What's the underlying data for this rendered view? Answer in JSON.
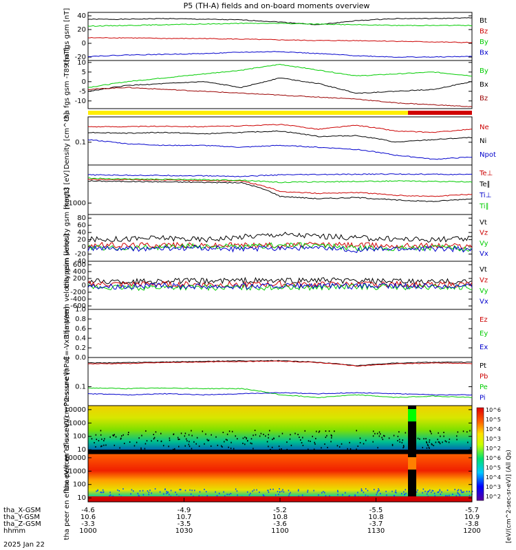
{
  "title": "P5 (TH-A) fields and on-board moments overview",
  "time_axis": {
    "rows": [
      {
        "label": "tha_X-GSM",
        "values": [
          "-4.6",
          "-4.9",
          "-5.2",
          "-5.5",
          "-5.7"
        ]
      },
      {
        "label": "tha_Y-GSM",
        "values": [
          "10.6",
          "10.7",
          "10.8",
          "10.8",
          "10.9"
        ]
      },
      {
        "label": "tha_Z-GSM",
        "values": [
          "-3.3",
          "-3.5",
          "-3.6",
          "-3.7",
          "-3.8"
        ]
      },
      {
        "label": "hhmm",
        "values": [
          "1000",
          "1030",
          "1100",
          "1130",
          "1200"
        ]
      }
    ],
    "date": "2025 Jan 22"
  },
  "colorbar": {
    "label": "[eV/(cm^2-sec-sr-eV)] (All Qs)",
    "ticks": [
      "10^2",
      "10^3",
      "10^4",
      "10^5",
      "10^6",
      "10^2",
      "10^3",
      "10^4",
      "10^5",
      "10^6"
    ]
  },
  "chart_data": [
    {
      "type": "line",
      "ylabel": "tha fgs gsm [nT]",
      "yticks": [
        "40",
        "20",
        "0",
        "-20"
      ],
      "ylim": [
        -25,
        45
      ],
      "series": [
        {
          "name": "Bt",
          "color": "#000000",
          "values": [
            35,
            35,
            36,
            35,
            34,
            31,
            27,
            33,
            36,
            36,
            37
          ]
        },
        {
          "name": "Bz",
          "color": "#cc0000",
          "values": [
            8,
            8,
            7,
            7,
            6,
            5,
            4,
            4,
            3,
            2,
            1
          ]
        },
        {
          "name": "By",
          "color": "#00cc00",
          "values": [
            25,
            26,
            27,
            28,
            29,
            29,
            28,
            27,
            26,
            26,
            26
          ]
        },
        {
          "name": "Bx",
          "color": "#0000cc",
          "values": [
            -19,
            -17,
            -16,
            -15,
            -13,
            -12,
            -15,
            -18,
            -20,
            -20,
            -19
          ]
        }
      ]
    },
    {
      "type": "line",
      "ylabel": "tha fgs gsm -T89 [nT]",
      "yticks": [
        "10",
        "5",
        "0",
        "-5",
        "-10"
      ],
      "ylim": [
        -14,
        11
      ],
      "series": [
        {
          "name": "By",
          "color": "#00cc00",
          "values": [
            -3,
            0,
            2,
            4,
            6,
            9,
            6,
            3,
            4,
            5,
            3
          ]
        },
        {
          "name": "Bx",
          "color": "#000000",
          "values": [
            -5,
            -2,
            -1,
            0,
            -3,
            2,
            -1,
            -6,
            -5,
            -4,
            0
          ]
        },
        {
          "name": "Bz",
          "color": "#990000",
          "values": [
            -4,
            -3,
            -4,
            -5,
            -6,
            -7,
            -8,
            -9,
            -11,
            -12,
            -13
          ]
        }
      ]
    },
    {
      "type": "line",
      "ylabel": "Density [cm^-3]",
      "yticks": [
        "0.1"
      ],
      "log": true,
      "ylim": [
        0.02,
        0.6
      ],
      "series": [
        {
          "name": "Ne",
          "color": "#cc0000",
          "values": [
            0.3,
            0.3,
            0.31,
            0.3,
            0.32,
            0.35,
            0.25,
            0.33,
            0.22,
            0.2,
            0.25
          ]
        },
        {
          "name": "Ni",
          "color": "#000000",
          "values": [
            0.2,
            0.19,
            0.2,
            0.18,
            0.2,
            0.22,
            0.15,
            0.16,
            0.1,
            0.12,
            0.14
          ]
        },
        {
          "name": "Npot",
          "color": "#0000cc",
          "values": [
            0.12,
            0.09,
            0.08,
            0.08,
            0.07,
            0.08,
            0.07,
            0.06,
            0.04,
            0.03,
            0.035
          ]
        }
      ]
    },
    {
      "type": "line",
      "ylabel": "magt3 [eV]",
      "yticks": [
        "1000"
      ],
      "log": true,
      "ylim": [
        500,
        10000
      ],
      "series": [
        {
          "name": "Te⊥",
          "color": "#cc0000",
          "values": [
            4200,
            4100,
            4000,
            3900,
            3800,
            2000,
            1800,
            1900,
            1600,
            1500,
            1700
          ]
        },
        {
          "name": "Te∥",
          "color": "#000000",
          "values": [
            3800,
            3700,
            3600,
            3500,
            3400,
            1500,
            1300,
            1400,
            1200,
            1100,
            1300
          ]
        },
        {
          "name": "Ti⊥",
          "color": "#0000cc",
          "values": [
            5500,
            5400,
            5300,
            5200,
            5000,
            5500,
            5600,
            5700,
            5800,
            5700,
            5600
          ]
        },
        {
          "name": "Ti∥",
          "color": "#00cc00",
          "values": [
            4500,
            4300,
            4200,
            4100,
            4000,
            3500,
            3600,
            3700,
            3800,
            3700,
            3600
          ]
        }
      ]
    },
    {
      "type": "line",
      "ylabel": "tha peim velocity gsm [km/s]",
      "yticks": [
        "80",
        "60",
        "40",
        "20",
        "0",
        "-20",
        "-40"
      ],
      "ylim": [
        -40,
        90
      ],
      "series": [
        {
          "name": "Vt",
          "color": "#000000",
          "values": [
            20,
            22,
            25,
            20,
            28,
            35,
            30,
            25,
            22,
            20,
            22
          ]
        },
        {
          "name": "Vz",
          "color": "#cc0000",
          "values": [
            5,
            4,
            6,
            3,
            5,
            4,
            6,
            5,
            3,
            4,
            2
          ]
        },
        {
          "name": "Vy",
          "color": "#00cc00",
          "values": [
            -2,
            -3,
            0,
            2,
            -1,
            5,
            3,
            -4,
            -3,
            -2,
            -5
          ]
        },
        {
          "name": "Vx",
          "color": "#0000cc",
          "values": [
            -4,
            -6,
            -5,
            -3,
            -7,
            -2,
            -4,
            -8,
            -6,
            -5,
            -7
          ]
        }
      ]
    },
    {
      "type": "line",
      "ylabel": "tha peem velocity gsm [km/s]",
      "yticks": [
        "600",
        "400",
        "200",
        "0",
        "-200",
        "-400",
        "-600"
      ],
      "ylim": [
        -700,
        700
      ],
      "series": [
        {
          "name": "Vt",
          "color": "#000000",
          "values": [
            120,
            110,
            130,
            120,
            140,
            130,
            150,
            120,
            110,
            100,
            110
          ]
        },
        {
          "name": "Vz",
          "color": "#cc0000",
          "values": [
            40,
            30,
            35,
            20,
            25,
            30,
            20,
            25,
            30,
            20,
            25
          ]
        },
        {
          "name": "Vy",
          "color": "#00cc00",
          "values": [
            -60,
            -70,
            -50,
            -60,
            -70,
            -50,
            -60,
            -40,
            -50,
            -60,
            -50
          ]
        },
        {
          "name": "Vx",
          "color": "#0000cc",
          "values": [
            -20,
            -30,
            -20,
            -25,
            -30,
            -20,
            -25,
            -30,
            -20,
            -25,
            -20
          ]
        }
      ]
    },
    {
      "type": "line",
      "ylabel": "E=-VxB [mV/m]",
      "yticks": [
        "1.0",
        "0.8",
        "0.6",
        "0.4",
        "0.2",
        "0.0"
      ],
      "ylim": [
        0,
        1
      ],
      "series": [
        {
          "name": "Ez",
          "color": "#cc0000",
          "values": []
        },
        {
          "name": "Ey",
          "color": "#00cc00",
          "values": []
        },
        {
          "name": "Ex",
          "color": "#0000cc",
          "values": []
        }
      ]
    },
    {
      "type": "line",
      "ylabel": "Pressure [nPa]",
      "yticks": [
        "0.1"
      ],
      "log": true,
      "ylim": [
        0.02,
        1.2
      ],
      "series": [
        {
          "name": "Pt",
          "color": "#000000",
          "values": [
            0.75,
            0.78,
            0.82,
            0.86,
            0.9,
            0.92,
            0.8,
            0.6,
            0.75,
            0.8,
            0.8
          ]
        },
        {
          "name": "Pb",
          "color": "#cc0000",
          "values": [
            0.7,
            0.72,
            0.78,
            0.82,
            0.86,
            0.88,
            0.78,
            0.58,
            0.7,
            0.75,
            0.72
          ]
        },
        {
          "name": "Pe",
          "color": "#00cc00",
          "values": [
            0.09,
            0.085,
            0.09,
            0.085,
            0.085,
            0.05,
            0.04,
            0.05,
            0.04,
            0.045,
            0.04
          ]
        },
        {
          "name": "Pi",
          "color": "#0000cc",
          "values": [
            0.055,
            0.05,
            0.055,
            0.05,
            0.055,
            0.06,
            0.055,
            0.06,
            0.055,
            0.05,
            0.05
          ]
        }
      ]
    },
    {
      "type": "heatmap",
      "ylabel": "tha peir en eflux eV/(cm^2-s-sr-eV)",
      "yticks": [
        "10000",
        "1000",
        "100",
        "10"
      ],
      "log": true,
      "ylim": [
        5,
        20000
      ]
    },
    {
      "type": "heatmap",
      "ylabel": "tha peer en eflux eV/(cm^2-s-sr-eV)",
      "yticks": [
        "10000",
        "1000",
        "100",
        "10"
      ],
      "log": true,
      "ylim": [
        5,
        20000
      ]
    }
  ]
}
